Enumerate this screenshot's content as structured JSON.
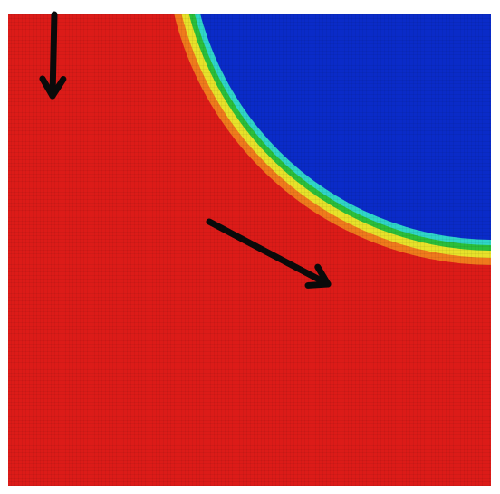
{
  "figure": {
    "type": "field-heatmap",
    "colormap": "jet",
    "colors": {
      "high": "#dc1b18",
      "low": "#0a2bc8",
      "interface_cyan": "#2fd6c8",
      "interface_green": "#2bbf3a",
      "interface_yellow": "#e8e22a",
      "interface_orange": "#f07a1c",
      "arrow": "#0a0a0a",
      "frame": "#ffffff"
    },
    "regions": [
      {
        "name": "high-value-region",
        "color_key": "high"
      },
      {
        "name": "low-value-region",
        "color_key": "low"
      }
    ],
    "arrows": [
      {
        "name": "downward-flow-arrow",
        "direction": "down"
      },
      {
        "name": "diagonal-flow-arrow",
        "direction": "down-right"
      }
    ]
  }
}
